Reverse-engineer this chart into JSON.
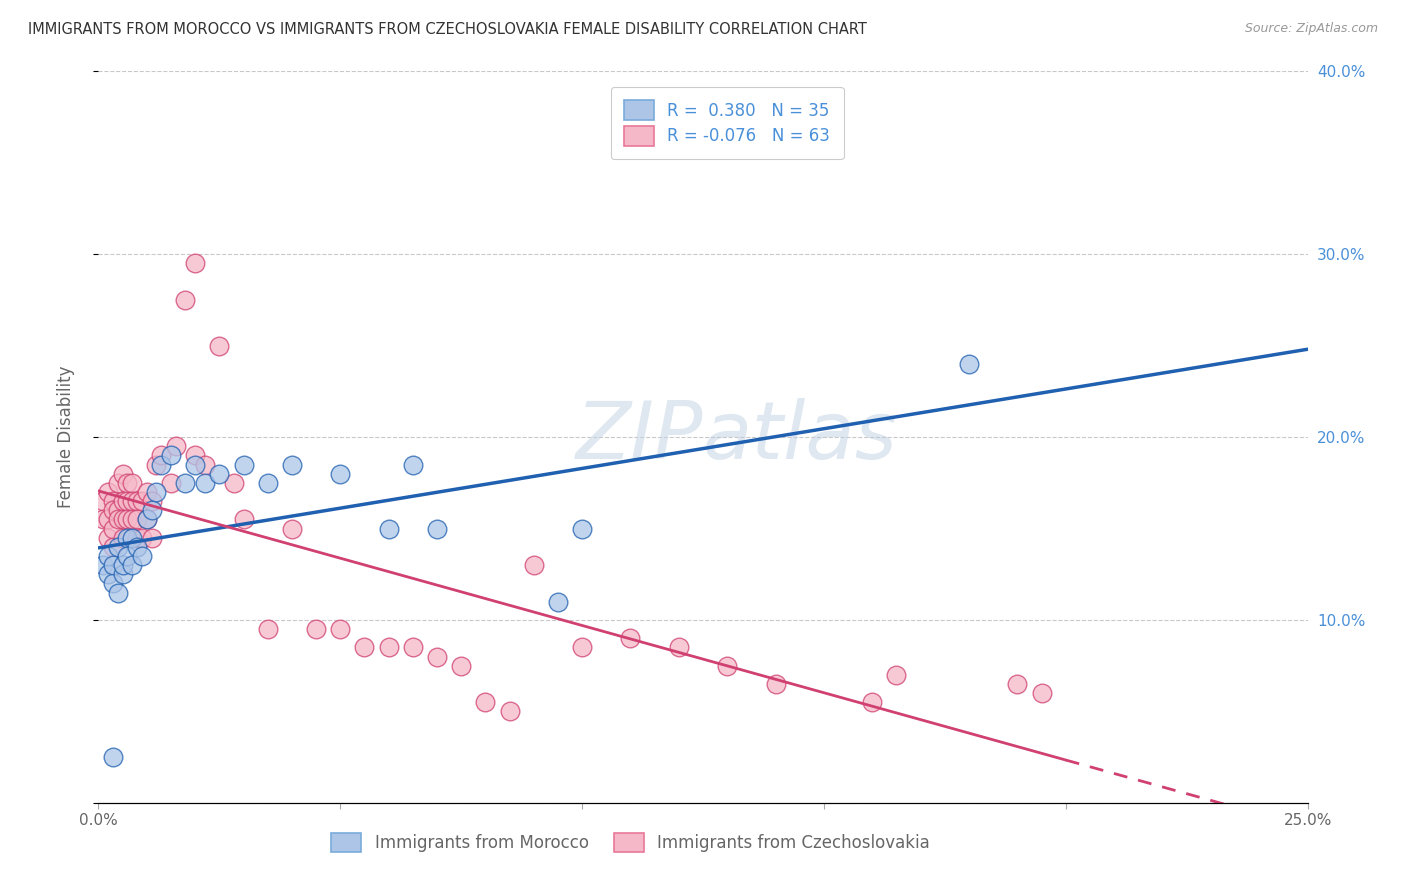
{
  "title": "IMMIGRANTS FROM MOROCCO VS IMMIGRANTS FROM CZECHOSLOVAKIA FEMALE DISABILITY CORRELATION CHART",
  "source": "Source: ZipAtlas.com",
  "ylabel": "Female Disability",
  "xlim": [
    0.0,
    0.25
  ],
  "ylim": [
    0.0,
    0.4
  ],
  "xticks": [
    0.0,
    0.05,
    0.1,
    0.15,
    0.2,
    0.25
  ],
  "xtick_labels": [
    "0.0%",
    "",
    "",
    "",
    "",
    "25.0%"
  ],
  "yticks": [
    0.0,
    0.1,
    0.2,
    0.3,
    0.4
  ],
  "ytick_labels_right": [
    "",
    "10.0%",
    "20.0%",
    "30.0%",
    "40.0%"
  ],
  "legend_labels": [
    "Immigrants from Morocco",
    "Immigrants from Czechoslovakia"
  ],
  "r_morocco": 0.38,
  "n_morocco": 35,
  "r_czechoslovakia": -0.076,
  "n_czechoslovakia": 63,
  "color_morocco": "#adc6e8",
  "color_czechoslovakia": "#f5b8c8",
  "line_color_morocco": "#2060b0",
  "line_color_czechoslovakia": "#d04070",
  "background_color": "#ffffff",
  "grid_color": "#cccccc",
  "watermark": "ZIPatlas",
  "morocco_x": [
    0.001,
    0.002,
    0.002,
    0.003,
    0.003,
    0.004,
    0.004,
    0.005,
    0.005,
    0.006,
    0.006,
    0.007,
    0.007,
    0.008,
    0.009,
    0.01,
    0.011,
    0.012,
    0.013,
    0.015,
    0.018,
    0.02,
    0.022,
    0.025,
    0.03,
    0.035,
    0.04,
    0.05,
    0.06,
    0.065,
    0.07,
    0.095,
    0.1,
    0.18,
    0.003
  ],
  "morocco_y": [
    0.13,
    0.125,
    0.135,
    0.12,
    0.13,
    0.115,
    0.14,
    0.125,
    0.13,
    0.145,
    0.135,
    0.13,
    0.145,
    0.14,
    0.135,
    0.155,
    0.16,
    0.17,
    0.185,
    0.19,
    0.175,
    0.185,
    0.175,
    0.18,
    0.185,
    0.175,
    0.185,
    0.18,
    0.15,
    0.185,
    0.15,
    0.11,
    0.15,
    0.24,
    0.025
  ],
  "czechoslovakia_x": [
    0.001,
    0.001,
    0.002,
    0.002,
    0.002,
    0.003,
    0.003,
    0.003,
    0.003,
    0.004,
    0.004,
    0.004,
    0.005,
    0.005,
    0.005,
    0.005,
    0.006,
    0.006,
    0.006,
    0.007,
    0.007,
    0.007,
    0.008,
    0.008,
    0.008,
    0.009,
    0.009,
    0.01,
    0.01,
    0.011,
    0.011,
    0.012,
    0.013,
    0.015,
    0.016,
    0.018,
    0.02,
    0.02,
    0.022,
    0.025,
    0.028,
    0.03,
    0.035,
    0.04,
    0.045,
    0.05,
    0.055,
    0.06,
    0.065,
    0.07,
    0.075,
    0.08,
    0.085,
    0.09,
    0.1,
    0.11,
    0.12,
    0.13,
    0.14,
    0.16,
    0.165,
    0.19,
    0.195
  ],
  "czechoslovakia_y": [
    0.165,
    0.155,
    0.17,
    0.155,
    0.145,
    0.165,
    0.16,
    0.15,
    0.14,
    0.175,
    0.16,
    0.155,
    0.18,
    0.165,
    0.155,
    0.145,
    0.175,
    0.165,
    0.155,
    0.175,
    0.165,
    0.155,
    0.165,
    0.155,
    0.145,
    0.165,
    0.145,
    0.17,
    0.155,
    0.165,
    0.145,
    0.185,
    0.19,
    0.175,
    0.195,
    0.275,
    0.19,
    0.295,
    0.185,
    0.25,
    0.175,
    0.155,
    0.095,
    0.15,
    0.095,
    0.095,
    0.085,
    0.085,
    0.085,
    0.08,
    0.075,
    0.055,
    0.05,
    0.13,
    0.085,
    0.09,
    0.085,
    0.075,
    0.065,
    0.055,
    0.07,
    0.065,
    0.06
  ]
}
